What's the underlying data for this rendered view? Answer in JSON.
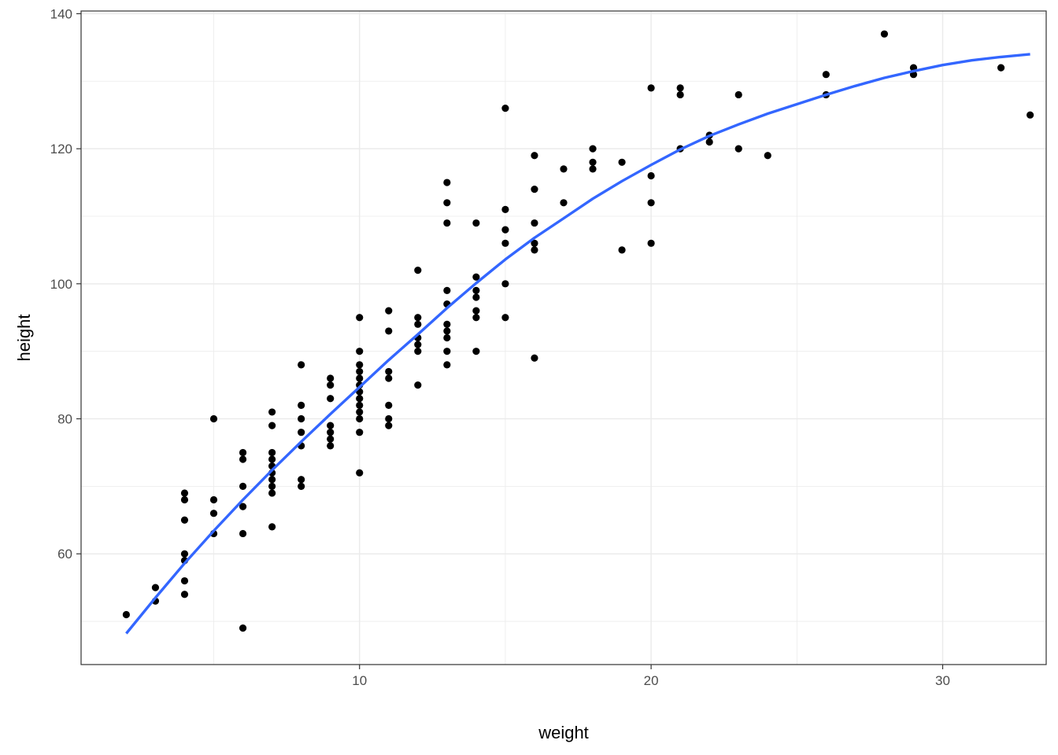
{
  "chart_data": {
    "type": "scatter",
    "title": "",
    "xlabel": "weight",
    "ylabel": "height",
    "xlim": [
      0.45,
      33.55
    ],
    "ylim": [
      43.6,
      140.4
    ],
    "x_ticks": [
      10,
      20,
      30
    ],
    "y_ticks": [
      60,
      80,
      100,
      120,
      140
    ],
    "x_tick_labels": [
      "10",
      "20",
      "30"
    ],
    "y_tick_labels": [
      "60",
      "80",
      "100",
      "120",
      "140"
    ],
    "grid": true,
    "legend": "none",
    "colors": {
      "points": "#000000",
      "smooth": "#3366ff",
      "grid": "#ebebeb",
      "panel_border": "#333333"
    },
    "points": [
      [
        2,
        51
      ],
      [
        3,
        55
      ],
      [
        3,
        53
      ],
      [
        4,
        69
      ],
      [
        4,
        68
      ],
      [
        4,
        65
      ],
      [
        4,
        60
      ],
      [
        4,
        59
      ],
      [
        4,
        56
      ],
      [
        4,
        54
      ],
      [
        5,
        80
      ],
      [
        5,
        68
      ],
      [
        5,
        66
      ],
      [
        5,
        63
      ],
      [
        6,
        75
      ],
      [
        6,
        74
      ],
      [
        6,
        70
      ],
      [
        6,
        67
      ],
      [
        6,
        63
      ],
      [
        6,
        49
      ],
      [
        7,
        81
      ],
      [
        7,
        79
      ],
      [
        7,
        75
      ],
      [
        7,
        74
      ],
      [
        7,
        73
      ],
      [
        7,
        72
      ],
      [
        7,
        71
      ],
      [
        7,
        70
      ],
      [
        7,
        69
      ],
      [
        7,
        64
      ],
      [
        8,
        88
      ],
      [
        8,
        82
      ],
      [
        8,
        80
      ],
      [
        8,
        78
      ],
      [
        8,
        76
      ],
      [
        8,
        71
      ],
      [
        8,
        70
      ],
      [
        9,
        86
      ],
      [
        9,
        85
      ],
      [
        9,
        83
      ],
      [
        9,
        79
      ],
      [
        9,
        78
      ],
      [
        9,
        77
      ],
      [
        9,
        76
      ],
      [
        10,
        95
      ],
      [
        10,
        90
      ],
      [
        10,
        88
      ],
      [
        10,
        87
      ],
      [
        10,
        86
      ],
      [
        10,
        85
      ],
      [
        10,
        84
      ],
      [
        10,
        83
      ],
      [
        10,
        82
      ],
      [
        10,
        81
      ],
      [
        10,
        80
      ],
      [
        10,
        78
      ],
      [
        10,
        72
      ],
      [
        11,
        96
      ],
      [
        11,
        93
      ],
      [
        11,
        87
      ],
      [
        11,
        86
      ],
      [
        11,
        82
      ],
      [
        11,
        80
      ],
      [
        11,
        79
      ],
      [
        12,
        102
      ],
      [
        12,
        95
      ],
      [
        12,
        94
      ],
      [
        12,
        92
      ],
      [
        12,
        91
      ],
      [
        12,
        90
      ],
      [
        12,
        85
      ],
      [
        13,
        115
      ],
      [
        13,
        112
      ],
      [
        13,
        109
      ],
      [
        13,
        99
      ],
      [
        13,
        97
      ],
      [
        13,
        94
      ],
      [
        13,
        93
      ],
      [
        13,
        92
      ],
      [
        13,
        90
      ],
      [
        13,
        88
      ],
      [
        14,
        109
      ],
      [
        14,
        101
      ],
      [
        14,
        99
      ],
      [
        14,
        98
      ],
      [
        14,
        96
      ],
      [
        14,
        95
      ],
      [
        14,
        90
      ],
      [
        15,
        126
      ],
      [
        15,
        111
      ],
      [
        15,
        108
      ],
      [
        15,
        106
      ],
      [
        15,
        100
      ],
      [
        15,
        95
      ],
      [
        16,
        119
      ],
      [
        16,
        114
      ],
      [
        16,
        109
      ],
      [
        16,
        106
      ],
      [
        16,
        105
      ],
      [
        16,
        89
      ],
      [
        17,
        117
      ],
      [
        17,
        112
      ],
      [
        18,
        120
      ],
      [
        18,
        118
      ],
      [
        18,
        117
      ],
      [
        19,
        118
      ],
      [
        19,
        105
      ],
      [
        20,
        129
      ],
      [
        20,
        116
      ],
      [
        20,
        112
      ],
      [
        20,
        106
      ],
      [
        21,
        129
      ],
      [
        21,
        128
      ],
      [
        21,
        120
      ],
      [
        22,
        122
      ],
      [
        22,
        121
      ],
      [
        23,
        128
      ],
      [
        23,
        120
      ],
      [
        24,
        119
      ],
      [
        26,
        131
      ],
      [
        26,
        128
      ],
      [
        28,
        137
      ],
      [
        29,
        132
      ],
      [
        29,
        131
      ],
      [
        32,
        132
      ],
      [
        33,
        125
      ]
    ],
    "smooth": [
      [
        2,
        48.2
      ],
      [
        3,
        53.5
      ],
      [
        4,
        58.6
      ],
      [
        5,
        63.4
      ],
      [
        6,
        68.0
      ],
      [
        7,
        72.4
      ],
      [
        8,
        76.6
      ],
      [
        9,
        80.7
      ],
      [
        10,
        84.7
      ],
      [
        11,
        88.7
      ],
      [
        12,
        92.5
      ],
      [
        13,
        96.4
      ],
      [
        14,
        100.1
      ],
      [
        15,
        103.6
      ],
      [
        16,
        106.8
      ],
      [
        17,
        109.7
      ],
      [
        18,
        112.6
      ],
      [
        19,
        115.2
      ],
      [
        20,
        117.6
      ],
      [
        21,
        119.9
      ],
      [
        22,
        121.9
      ],
      [
        23,
        123.6
      ],
      [
        24,
        125.2
      ],
      [
        25,
        126.6
      ],
      [
        26,
        128.0
      ],
      [
        27,
        129.3
      ],
      [
        28,
        130.5
      ],
      [
        29,
        131.5
      ],
      [
        30,
        132.4
      ],
      [
        31,
        133.1
      ],
      [
        32,
        133.6
      ],
      [
        33,
        134.0
      ]
    ]
  }
}
